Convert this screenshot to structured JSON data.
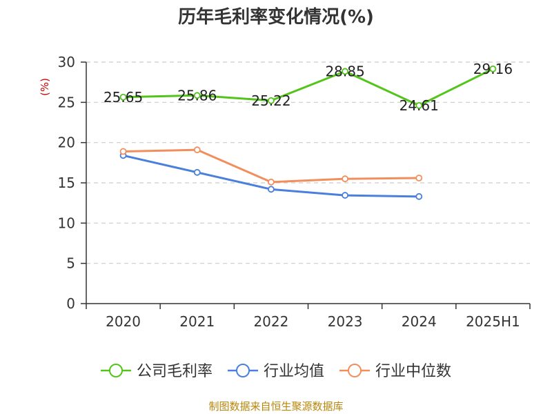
{
  "chart_data": {
    "type": "line",
    "title": "历年毛利率变化情况(%)",
    "ylabel": "(%)",
    "categories": [
      "2020",
      "2021",
      "2022",
      "2023",
      "2024",
      "2025H1"
    ],
    "ylim": [
      0,
      30
    ],
    "yticks": [
      "0",
      "5",
      "10",
      "15",
      "20",
      "25",
      "30"
    ],
    "grid": true,
    "legend_position": "bottom",
    "series": [
      {
        "name": "公司毛利率",
        "color": "#52c41a",
        "values": [
          25.65,
          25.86,
          25.22,
          28.85,
          24.61,
          29.16
        ],
        "labels": [
          "25.65",
          "25.86",
          "25.22",
          "28.85",
          "24.61",
          "29.16"
        ]
      },
      {
        "name": "行业均值",
        "color": "#4a7fdc",
        "values": [
          18.4,
          16.3,
          14.2,
          13.45,
          13.3,
          null
        ]
      },
      {
        "name": "行业中位数",
        "color": "#f28e5c",
        "values": [
          18.9,
          19.1,
          15.1,
          15.5,
          15.6,
          null
        ]
      }
    ]
  },
  "footer": {
    "source": "制图数据来自恒生聚源数据库"
  }
}
